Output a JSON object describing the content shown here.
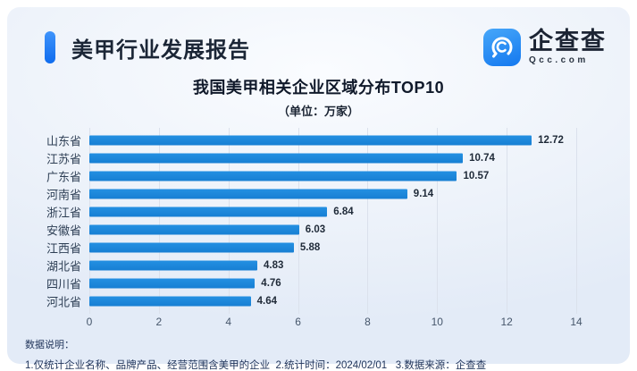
{
  "page": {
    "background": "#ffffff",
    "card_background": "#eef3fa"
  },
  "header": {
    "title": "美甲行业发展报告",
    "accent_color": "#1677f0"
  },
  "logo": {
    "icon": "qcc-swirl-icon",
    "name": "企查查",
    "domain": "Qcc.com",
    "color": "#2f8df4"
  },
  "chart_data": {
    "type": "bar",
    "orientation": "horizontal",
    "title": "我国美甲相关企业区域分布TOP10",
    "subtitle": "（单位：万家）",
    "categories": [
      "山东省",
      "江苏省",
      "广东省",
      "河南省",
      "浙江省",
      "安徽省",
      "江西省",
      "湖北省",
      "四川省",
      "河北省"
    ],
    "values": [
      12.72,
      10.74,
      10.57,
      9.14,
      6.84,
      6.03,
      5.88,
      4.83,
      4.76,
      4.64
    ],
    "xlim": [
      0,
      14
    ],
    "xticks": [
      0,
      2,
      4,
      6,
      8,
      10,
      12,
      14
    ],
    "xlabel": "",
    "ylabel": "",
    "grid": true,
    "legend": false,
    "value_labels": true,
    "bar_color": "#1984d8"
  },
  "footer": {
    "heading": "数据说明：",
    "note": "1.仅统计企业名称、品牌产品、经营范围含美甲的企业  2.统计时间：2024/02/01   3.数据来源：企查查"
  }
}
